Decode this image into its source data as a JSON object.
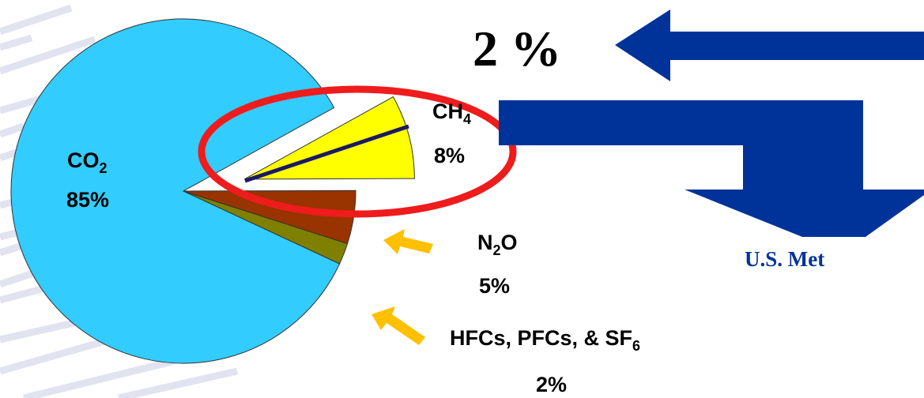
{
  "chart_data": {
    "type": "pie",
    "slices": [
      {
        "label": "CO",
        "label_sub": "2",
        "label_suffix": "",
        "value": 85,
        "value_label": "85%",
        "color": "#33ccff",
        "exploded": false
      },
      {
        "label": "CH",
        "label_sub": "4",
        "label_suffix": "",
        "value": 8,
        "value_label": "8%",
        "color": "#ffff00",
        "exploded": true
      },
      {
        "label": "N",
        "label_sub": "2",
        "label_suffix": "O",
        "value": 5,
        "value_label": "5%",
        "color": "#993300",
        "exploded": false
      },
      {
        "label": "HFCs, PFCs, & SF",
        "label_sub": "6",
        "label_suffix": "",
        "value": 2,
        "value_label": "2%",
        "color": "#808000",
        "exploded": false
      }
    ]
  },
  "callout": {
    "percent_text": "2 %",
    "methane_text": "U.S. Met",
    "arrow_color": "#003399",
    "highlight_color": "#ee1c1c",
    "pointer_color": "#ffc000"
  }
}
